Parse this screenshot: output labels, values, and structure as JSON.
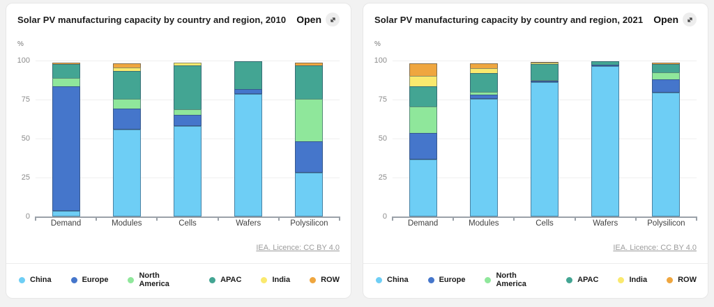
{
  "open_button": {
    "label": "Open",
    "icon": "expand-diagonal-icon"
  },
  "chart_data": [
    {
      "type": "bar",
      "stacked": true,
      "title": "Solar PV manufacturing capacity by country and region, 2010",
      "unit_label": "%",
      "source_link": "IEA. Licence: CC BY 4.0",
      "categories": [
        "Demand",
        "Modules",
        "Cells",
        "Wafers",
        "Polysilicon"
      ],
      "yticks": [
        0,
        25,
        50,
        75,
        100
      ],
      "ylim": [
        0,
        100
      ],
      "legend_position": "bottom",
      "series": [
        {
          "name": "China",
          "color": "#6ecef5",
          "values": [
            3.5,
            56,
            58,
            78.5,
            28
          ]
        },
        {
          "name": "Europe",
          "color": "#4576cb",
          "values": [
            80,
            13,
            7,
            3,
            20
          ]
        },
        {
          "name": "North America",
          "color": "#8fe79b",
          "values": [
            6,
            7,
            4,
            0,
            28
          ]
        },
        {
          "name": "APAC",
          "color": "#43a593",
          "values": [
            9,
            18,
            29,
            18.5,
            22
          ]
        },
        {
          "name": "India",
          "color": "#fae96e",
          "values": [
            0,
            3,
            2,
            0,
            0
          ]
        },
        {
          "name": "ROW",
          "color": "#efa63f",
          "values": [
            1.5,
            3,
            0,
            0,
            2
          ]
        }
      ]
    },
    {
      "type": "bar",
      "stacked": true,
      "title": "Solar PV manufacturing capacity by country and region, 2021",
      "unit_label": "%",
      "source_link": "IEA. Licence: CC BY 4.0",
      "categories": [
        "Demand",
        "Modules",
        "Cells",
        "Wafers",
        "Polysilicon"
      ],
      "yticks": [
        0,
        25,
        50,
        75,
        100
      ],
      "ylim": [
        0,
        100
      ],
      "legend_position": "bottom",
      "series": [
        {
          "name": "China",
          "color": "#6ecef5",
          "values": [
            36.5,
            75.5,
            86,
            96.5,
            79.5
          ]
        },
        {
          "name": "Europe",
          "color": "#4576cb",
          "values": [
            17,
            2.5,
            1,
            1,
            8.5
          ]
        },
        {
          "name": "North America",
          "color": "#8fe79b",
          "values": [
            17.5,
            2.5,
            0.5,
            0,
            5
          ]
        },
        {
          "name": "APAC",
          "color": "#43a593",
          "values": [
            13.5,
            12.5,
            11,
            2.5,
            5.5
          ]
        },
        {
          "name": "India",
          "color": "#fae96e",
          "values": [
            7,
            3.5,
            1,
            0,
            0
          ]
        },
        {
          "name": "ROW",
          "color": "#efa63f",
          "values": [
            8.5,
            3.5,
            0.5,
            0,
            1.5
          ]
        }
      ]
    }
  ]
}
